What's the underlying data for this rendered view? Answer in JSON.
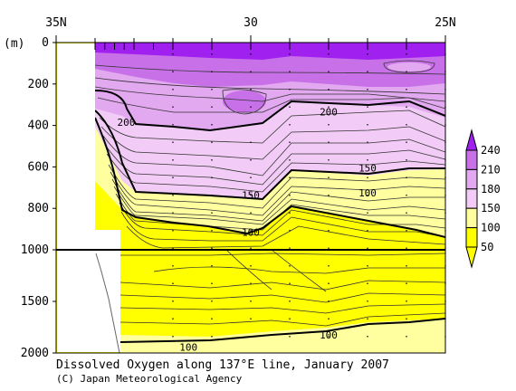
{
  "chart_data": {
    "type": "contour",
    "title": "Dissolved Oxygen along 137°E line, January 2007",
    "credit": "(C) Japan Meteorological Agency",
    "x_axis": {
      "ticks": [
        "35N",
        "30",
        "25N"
      ],
      "range": [
        35,
        25
      ]
    },
    "y_axis": {
      "unit_label": "(m)",
      "upper_ticks": [
        "0",
        "200",
        "400",
        "600",
        "800",
        "1000"
      ],
      "lower_ticks": [
        "1500",
        "2000"
      ],
      "break_depth": 1000,
      "range": [
        0,
        2000
      ]
    },
    "legend": {
      "levels": [
        "240",
        "210",
        "180",
        "150",
        "100",
        "50"
      ],
      "colors": [
        "#a020f0",
        "#c870e8",
        "#e2a8f0",
        "#f2ccf6",
        "#ffffa0",
        "#ffff00"
      ]
    },
    "contour_labels": [
      {
        "text": "200",
        "lat": 33.2,
        "depth": 385
      },
      {
        "text": "200",
        "lat": 28.0,
        "depth": 335
      },
      {
        "text": "150",
        "lat": 30.0,
        "depth": 735
      },
      {
        "text": "150",
        "lat": 27.0,
        "depth": 605
      },
      {
        "text": "100",
        "lat": 30.0,
        "depth": 915
      },
      {
        "text": "100",
        "lat": 27.0,
        "depth": 725
      },
      {
        "text": "100",
        "lat": 28.0,
        "depth": 1825
      },
      {
        "text": "100",
        "lat": 31.6,
        "depth": 1945
      }
    ],
    "stations_lat": [
      34.0,
      33.75,
      33.5,
      33.25,
      33.0,
      32.5,
      32.0,
      31.0,
      30.0,
      29.0,
      28.0,
      27.0,
      26.0,
      25.0
    ]
  }
}
